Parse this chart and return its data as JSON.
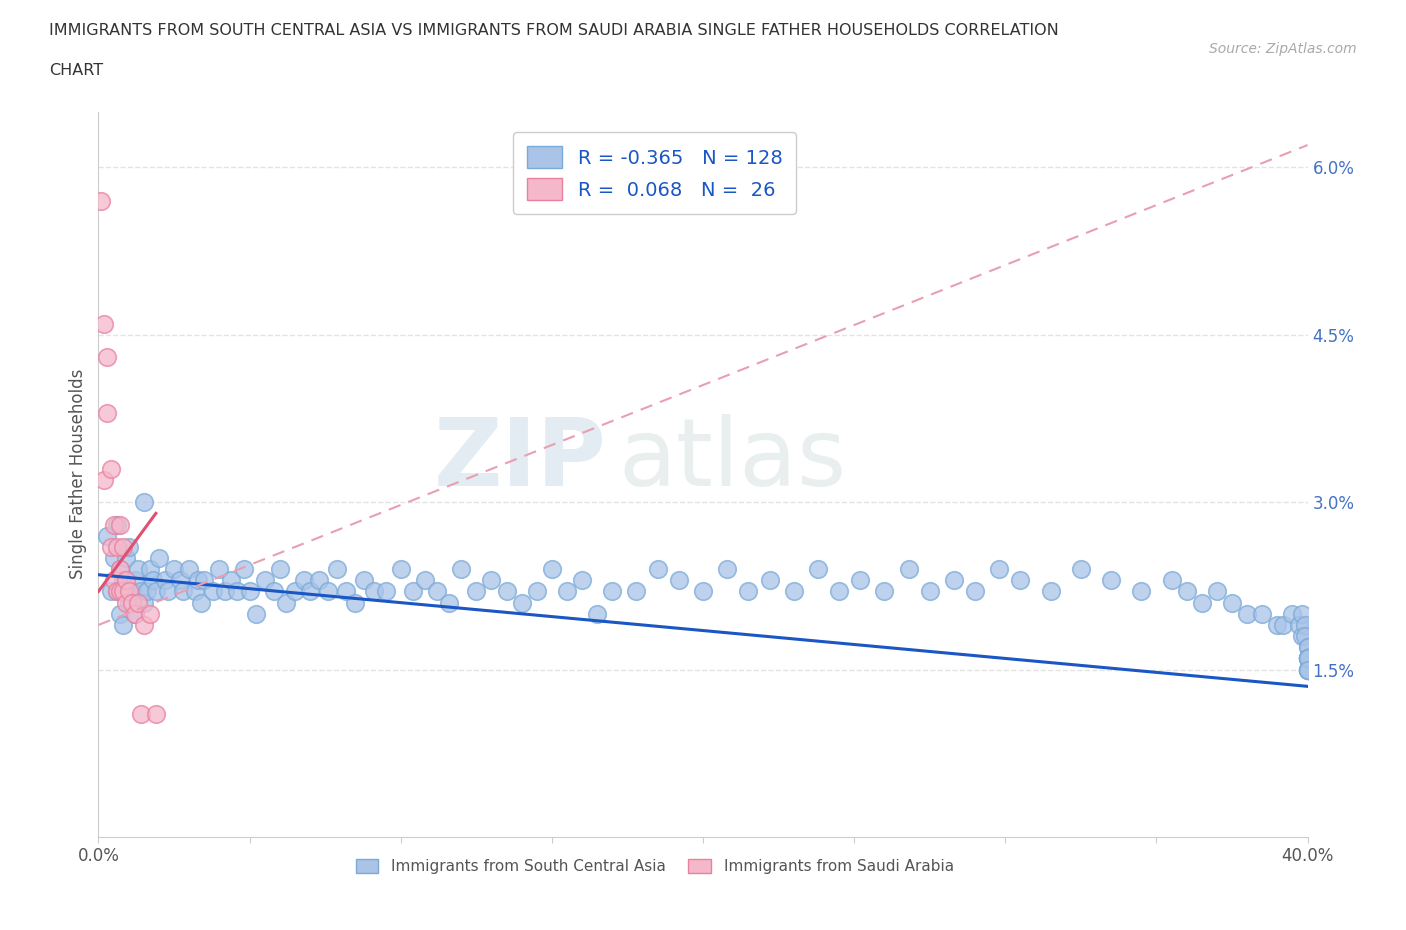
{
  "title_line1": "IMMIGRANTS FROM SOUTH CENTRAL ASIA VS IMMIGRANTS FROM SAUDI ARABIA SINGLE FATHER HOUSEHOLDS CORRELATION",
  "title_line2": "CHART",
  "source": "Source: ZipAtlas.com",
  "ylabel": "Single Father Households",
  "xlim": [
    0.0,
    0.4
  ],
  "ylim": [
    0.0,
    0.065
  ],
  "series1_color": "#aac4e8",
  "series1_edge": "#7aaad8",
  "series2_color": "#f5b8cb",
  "series2_edge": "#e8809e",
  "line1_color": "#1a56c4",
  "line2_color": "#e05070",
  "line2_dash_color": "#e8a0b0",
  "R1": -0.365,
  "N1": 128,
  "R2": 0.068,
  "N2": 26,
  "legend1_label": "Immigrants from South Central Asia",
  "legend2_label": "Immigrants from Saudi Arabia",
  "watermark_zip": "ZIP",
  "watermark_atlas": "atlas",
  "background_color": "#ffffff",
  "grid_color": "#dddddd",
  "ytick_color": "#4472c4",
  "series1_x": [
    0.003,
    0.004,
    0.005,
    0.006,
    0.006,
    0.007,
    0.007,
    0.008,
    0.008,
    0.009,
    0.009,
    0.01,
    0.01,
    0.011,
    0.012,
    0.012,
    0.013,
    0.014,
    0.015,
    0.015,
    0.016,
    0.017,
    0.018,
    0.019,
    0.02,
    0.022,
    0.023,
    0.025,
    0.027,
    0.028,
    0.03,
    0.032,
    0.033,
    0.034,
    0.035,
    0.038,
    0.04,
    0.042,
    0.044,
    0.046,
    0.048,
    0.05,
    0.052,
    0.055,
    0.058,
    0.06,
    0.062,
    0.065,
    0.068,
    0.07,
    0.073,
    0.076,
    0.079,
    0.082,
    0.085,
    0.088,
    0.091,
    0.095,
    0.1,
    0.104,
    0.108,
    0.112,
    0.116,
    0.12,
    0.125,
    0.13,
    0.135,
    0.14,
    0.145,
    0.15,
    0.155,
    0.16,
    0.165,
    0.17,
    0.178,
    0.185,
    0.192,
    0.2,
    0.208,
    0.215,
    0.222,
    0.23,
    0.238,
    0.245,
    0.252,
    0.26,
    0.268,
    0.275,
    0.283,
    0.29,
    0.298,
    0.305,
    0.315,
    0.325,
    0.335,
    0.345,
    0.355,
    0.36,
    0.365,
    0.37,
    0.375,
    0.38,
    0.385,
    0.39,
    0.392,
    0.395,
    0.397,
    0.398,
    0.398,
    0.399,
    0.399,
    0.4,
    0.4,
    0.4,
    0.4,
    0.4,
    0.4,
    0.4,
    0.4,
    0.4,
    0.4,
    0.4,
    0.4,
    0.4,
    0.4,
    0.4,
    0.4,
    0.4
  ],
  "series1_y": [
    0.027,
    0.022,
    0.025,
    0.022,
    0.028,
    0.024,
    0.02,
    0.023,
    0.019,
    0.025,
    0.022,
    0.026,
    0.021,
    0.022,
    0.023,
    0.02,
    0.024,
    0.022,
    0.03,
    0.021,
    0.022,
    0.024,
    0.023,
    0.022,
    0.025,
    0.023,
    0.022,
    0.024,
    0.023,
    0.022,
    0.024,
    0.022,
    0.023,
    0.021,
    0.023,
    0.022,
    0.024,
    0.022,
    0.023,
    0.022,
    0.024,
    0.022,
    0.02,
    0.023,
    0.022,
    0.024,
    0.021,
    0.022,
    0.023,
    0.022,
    0.023,
    0.022,
    0.024,
    0.022,
    0.021,
    0.023,
    0.022,
    0.022,
    0.024,
    0.022,
    0.023,
    0.022,
    0.021,
    0.024,
    0.022,
    0.023,
    0.022,
    0.021,
    0.022,
    0.024,
    0.022,
    0.023,
    0.02,
    0.022,
    0.022,
    0.024,
    0.023,
    0.022,
    0.024,
    0.022,
    0.023,
    0.022,
    0.024,
    0.022,
    0.023,
    0.022,
    0.024,
    0.022,
    0.023,
    0.022,
    0.024,
    0.023,
    0.022,
    0.024,
    0.023,
    0.022,
    0.023,
    0.022,
    0.021,
    0.022,
    0.021,
    0.02,
    0.02,
    0.019,
    0.019,
    0.02,
    0.019,
    0.018,
    0.02,
    0.019,
    0.018,
    0.017,
    0.016,
    0.016,
    0.017,
    0.016,
    0.015,
    0.016,
    0.015,
    0.016,
    0.015,
    0.016,
    0.015,
    0.016,
    0.015,
    0.015,
    0.016,
    0.015
  ],
  "series2_x": [
    0.001,
    0.002,
    0.002,
    0.003,
    0.003,
    0.004,
    0.004,
    0.005,
    0.005,
    0.006,
    0.006,
    0.007,
    0.007,
    0.007,
    0.008,
    0.008,
    0.009,
    0.009,
    0.01,
    0.011,
    0.012,
    0.013,
    0.014,
    0.015,
    0.017,
    0.019
  ],
  "series2_y": [
    0.057,
    0.046,
    0.032,
    0.043,
    0.038,
    0.033,
    0.026,
    0.028,
    0.023,
    0.026,
    0.022,
    0.028,
    0.024,
    0.022,
    0.026,
    0.022,
    0.023,
    0.021,
    0.022,
    0.021,
    0.02,
    0.021,
    0.011,
    0.019,
    0.02,
    0.011
  ],
  "line1_x0": 0.0,
  "line1_x1": 0.4,
  "line1_y0": 0.0235,
  "line1_y1": 0.0135,
  "line2_solid_x0": 0.0,
  "line2_solid_x1": 0.019,
  "line2_solid_y0": 0.022,
  "line2_solid_y1": 0.029,
  "line2_dash_x0": 0.0,
  "line2_dash_x1": 0.4,
  "line2_dash_y0": 0.019,
  "line2_dash_y1": 0.062
}
